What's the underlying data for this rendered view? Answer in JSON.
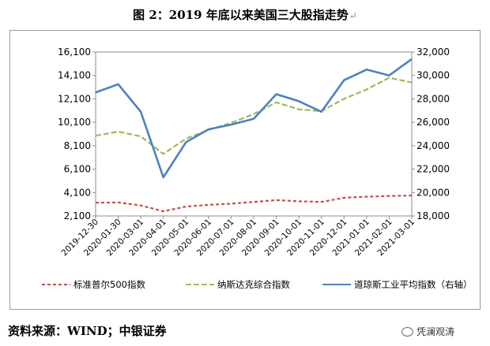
{
  "chart_data": {
    "title": "图 2：2019 年底以来美国三大股指走势",
    "type": "line",
    "x": [
      "2019-12-30",
      "2020-01-30",
      "2020-03-01",
      "2020-04-01",
      "2020-05-01",
      "2020-06-01",
      "2020-07-01",
      "2020-08-01",
      "2020-09-01",
      "2020-10-01",
      "2020-11-01",
      "2020-12-01",
      "2021-01-01",
      "2021-02-01",
      "2021-03-01"
    ],
    "x_tick_labels": [
      "2019-12-30",
      "2020-01-30",
      "2020-03-01",
      "2020-04-01",
      "2020-05-01",
      "2020-06-01",
      "2020-07-01",
      "2020-08-01",
      "2020-09-01",
      "2020-10-01",
      "2020-11-01",
      "2020-12-01",
      "2021-01-01",
      "2021-02-01",
      "2021-03-01"
    ],
    "y_left": {
      "ylim": [
        2100,
        16100
      ],
      "ticks": [
        "2,100",
        "4,100",
        "6,100",
        "8,100",
        "10,100",
        "12,100",
        "14,100",
        "16,100"
      ]
    },
    "y_right": {
      "ylim": [
        18000,
        32000
      ],
      "ticks": [
        "18,000",
        "20,000",
        "22,000",
        "24,000",
        "26,000",
        "28,000",
        "30,000",
        "32,000"
      ]
    },
    "grid": false,
    "legend_position": "bottom",
    "series": [
      {
        "name": "标准普尔500指数",
        "axis": "left",
        "color": "#c0504d",
        "dash": "4,3",
        "values": [
          3230,
          3250,
          3000,
          2500,
          2900,
          3050,
          3150,
          3300,
          3450,
          3350,
          3300,
          3650,
          3750,
          3800,
          3850
        ]
      },
      {
        "name": "纳斯达克综合指数",
        "axis": "left",
        "color": "#9bbb59",
        "dash": "7,3",
        "values": [
          8950,
          9300,
          8900,
          7400,
          8700,
          9450,
          10050,
          10800,
          11800,
          11200,
          11050,
          12100,
          12900,
          13900,
          13500
        ]
      },
      {
        "name": "道琼斯工业平均指数（右轴）",
        "axis": "right",
        "color": "#4f81bd",
        "dash": "",
        "values": [
          28550,
          29250,
          26900,
          21300,
          24300,
          25400,
          25800,
          26300,
          28400,
          27800,
          26900,
          29600,
          30500,
          30000,
          31400
        ]
      }
    ]
  },
  "source_text": "资料来源：WIND；中银证券",
  "watermark_text": "凭澜观涛",
  "watermark_icon": "wechat-icon"
}
